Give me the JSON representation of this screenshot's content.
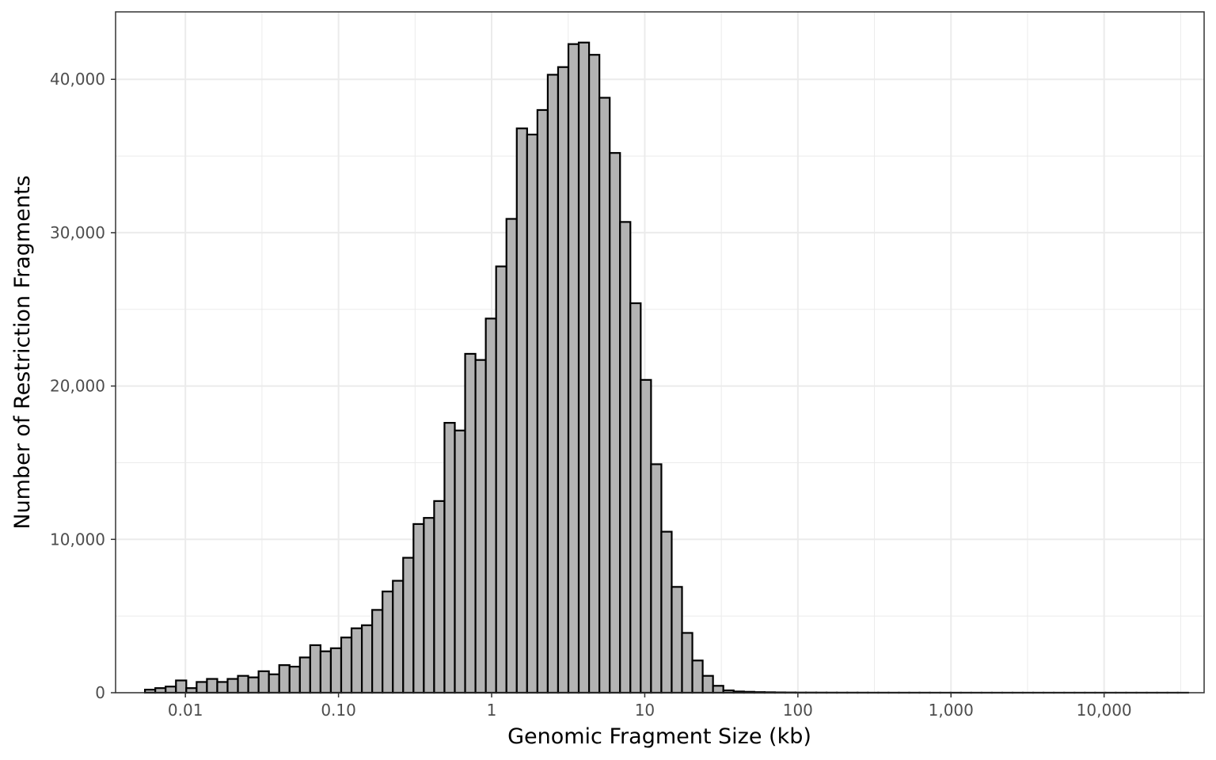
{
  "chart_data": {
    "type": "bar",
    "title": "",
    "xlabel": "Genomic Fragment Size (kb)",
    "ylabel": "Number of Restriction Fragments",
    "x_scale": "log10",
    "xlim": [
      0.0035,
      45000
    ],
    "ylim": [
      0,
      44400
    ],
    "x_ticks": [
      0.01,
      0.1,
      1,
      10,
      100,
      1000,
      10000
    ],
    "x_tick_labels": [
      "0.01",
      "0.10",
      "1",
      "10",
      "100",
      "1,000",
      "10,000"
    ],
    "y_ticks": [
      0,
      10000,
      20000,
      30000,
      40000
    ],
    "y_tick_labels": [
      "0",
      "10,000",
      "20,000",
      "30,000",
      "40,000"
    ],
    "grid": true,
    "colors": {
      "bar_fill": "#b3b3b3",
      "bar_stroke": "#000000",
      "grid": "#ebebeb",
      "panel_border": "#333333"
    },
    "bin_start_log10": -2.264,
    "bin_width_log10": 0.06745,
    "values": [
      200,
      300,
      400,
      800,
      300,
      700,
      900,
      700,
      900,
      1100,
      1000,
      1400,
      1200,
      1800,
      1700,
      2300,
      3100,
      2700,
      2900,
      3600,
      4200,
      4400,
      5400,
      6600,
      7300,
      8800,
      11000,
      11400,
      12500,
      17600,
      17100,
      22100,
      21700,
      24400,
      27800,
      30900,
      36800,
      36400,
      38000,
      40300,
      40800,
      42300,
      42400,
      41600,
      38800,
      35200,
      30700,
      25400,
      20400,
      14900,
      10500,
      6900,
      3900,
      2100,
      1100,
      450,
      150,
      80,
      60,
      40,
      30,
      20,
      15,
      10,
      10,
      8,
      6,
      5,
      5,
      4,
      3,
      3,
      2,
      2,
      2,
      2,
      1,
      1,
      1,
      1,
      1,
      1,
      1,
      1,
      1,
      1,
      1,
      1,
      1,
      1,
      1,
      1,
      1,
      1,
      1,
      1,
      1,
      1,
      1,
      1,
      1
    ]
  }
}
